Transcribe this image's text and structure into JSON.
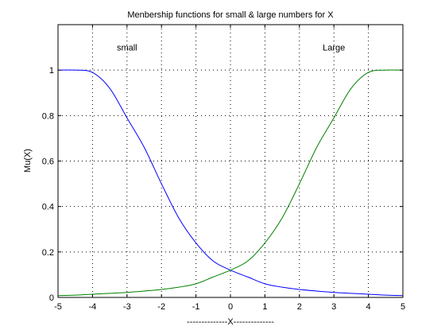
{
  "chart_data": {
    "type": "line",
    "title": "Menbership functions for small & large numbers for X",
    "xlabel": "--------------X--------------",
    "ylabel": "Mu(X)",
    "xlim": [
      -5,
      5
    ],
    "ylim": [
      0,
      1.2
    ],
    "xticks": [
      -5,
      -4,
      -3,
      -2,
      -1,
      0,
      1,
      2,
      3,
      4,
      5
    ],
    "xtick_labels": [
      "-5",
      "-4",
      "-3",
      "-2",
      "-1",
      "0",
      "1",
      "2",
      "3",
      "4",
      "5"
    ],
    "yticks": [
      0,
      0.2,
      0.4,
      0.6,
      0.8,
      1
    ],
    "ytick_labels": [
      "0",
      "0.2",
      "0.4",
      "0.6",
      "0.8",
      "1"
    ],
    "grid": true,
    "annotations": [
      {
        "text": "small",
        "x": -3,
        "y": 1.1
      },
      {
        "text": "Large",
        "x": 3,
        "y": 1.1
      }
    ],
    "series": [
      {
        "color": "#0000ff",
        "x": [
          -5,
          -4.5,
          -4,
          -3.5,
          -3,
          -2.5,
          -2,
          -1.5,
          -1,
          -0.5,
          0,
          0.5,
          1,
          1.5,
          2,
          2.5,
          3,
          3.5,
          4,
          4.5,
          5
        ],
        "y": [
          1.0,
          1.0,
          0.99,
          0.92,
          0.79,
          0.66,
          0.5,
          0.35,
          0.24,
          0.16,
          0.12,
          0.09,
          0.06,
          0.045,
          0.035,
          0.028,
          0.022,
          0.018,
          0.014,
          0.01,
          0.008
        ]
      },
      {
        "color": "#008000",
        "x": [
          -5,
          -4.5,
          -4,
          -3.5,
          -3,
          -2.5,
          -2,
          -1.5,
          -1,
          -0.5,
          0,
          0.5,
          1,
          1.5,
          2,
          2.5,
          3,
          3.5,
          4,
          4.5,
          5
        ],
        "y": [
          0.008,
          0.01,
          0.014,
          0.018,
          0.022,
          0.028,
          0.035,
          0.045,
          0.06,
          0.09,
          0.12,
          0.16,
          0.24,
          0.35,
          0.5,
          0.66,
          0.79,
          0.92,
          0.99,
          1.0,
          1.0
        ]
      }
    ]
  }
}
